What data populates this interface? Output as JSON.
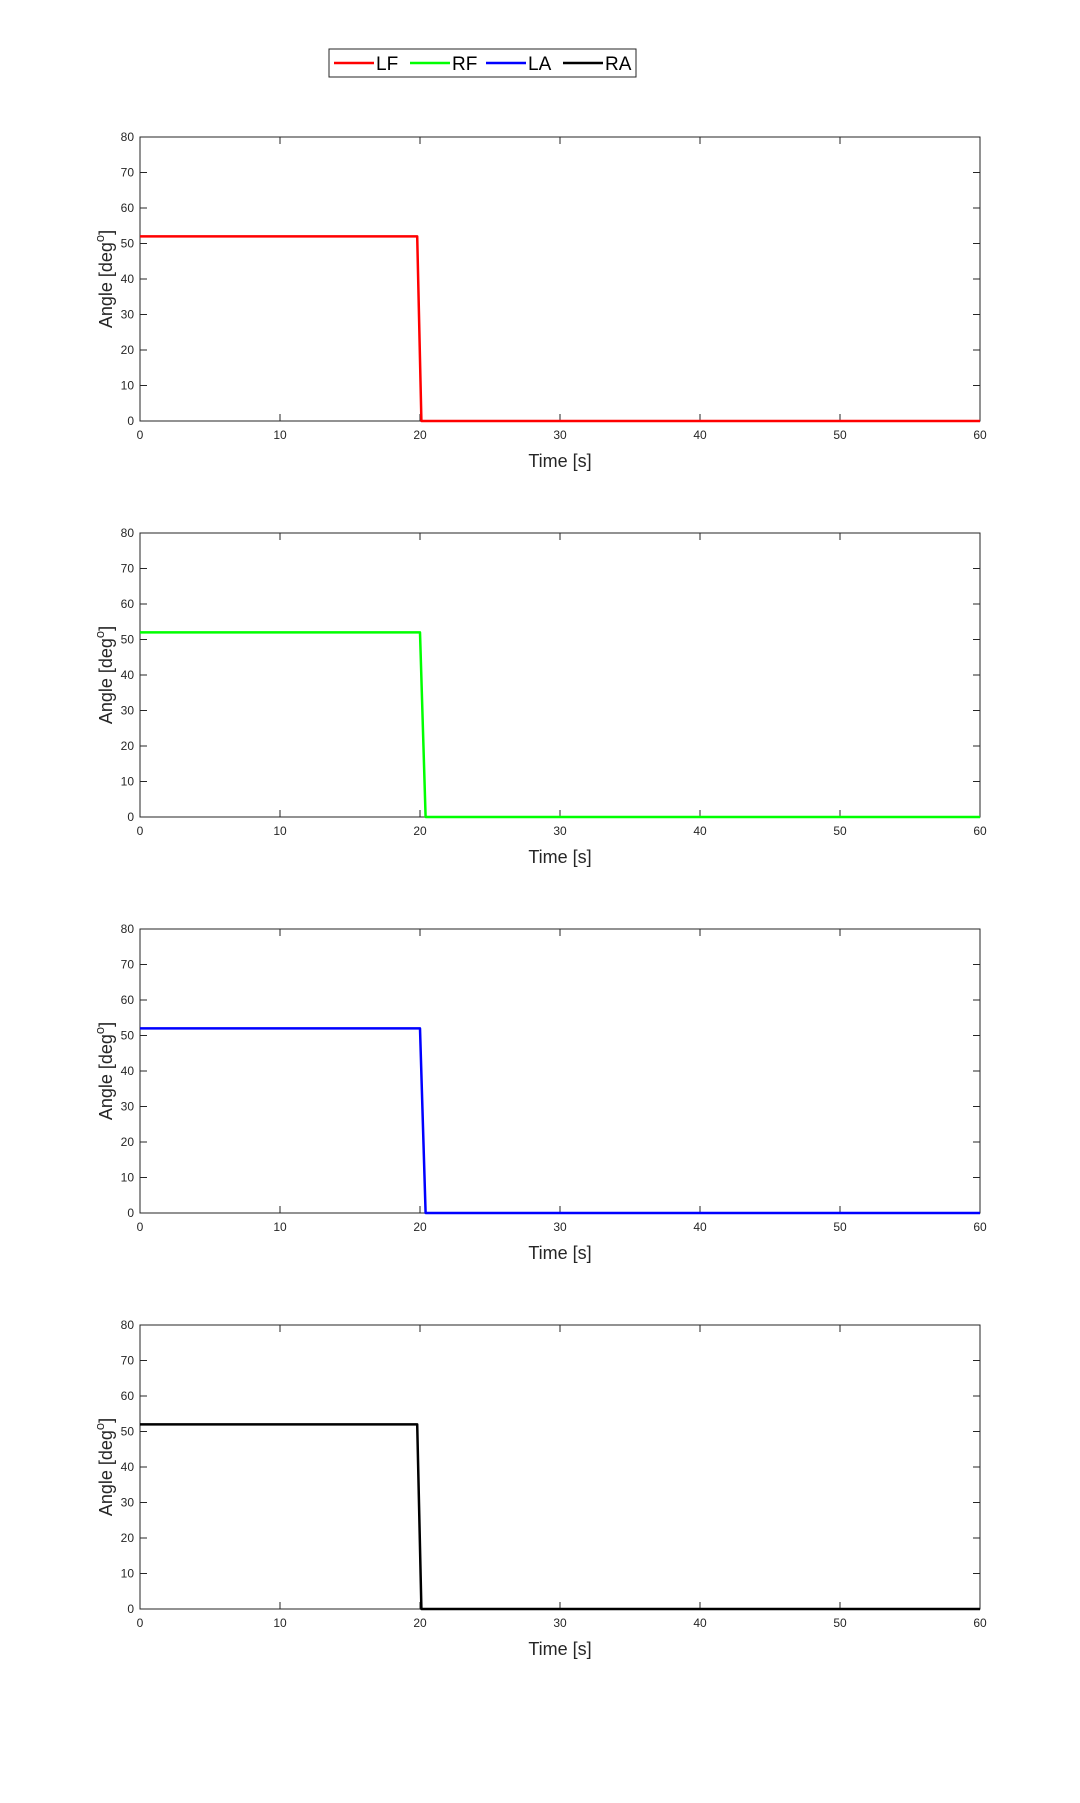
{
  "legend": {
    "placement": "top-center",
    "entries": [
      {
        "label": "LF",
        "color": "#ff0000"
      },
      {
        "label": "RF",
        "color": "#00ff00"
      },
      {
        "label": "LA",
        "color": "#0000ff"
      },
      {
        "label": "RA",
        "color": "#000000"
      }
    ]
  },
  "chart_data": [
    {
      "type": "line",
      "xlabel": "Time [s]",
      "ylabel": "Angle [deg",
      "ylabel_sup": "o",
      "ylabel_close": "]",
      "xlim": [
        0,
        60
      ],
      "ylim": [
        0,
        80
      ],
      "xticks": [
        0,
        10,
        20,
        30,
        40,
        50,
        60
      ],
      "yticks": [
        0,
        10,
        20,
        30,
        40,
        50,
        60,
        70,
        80
      ],
      "grid": false,
      "series": [
        {
          "name": "LF",
          "color": "#ff0000",
          "x": [
            0,
            19.8,
            20.1,
            60
          ],
          "y": [
            52,
            52,
            0,
            0
          ]
        }
      ]
    },
    {
      "type": "line",
      "xlabel": "Time [s]",
      "ylabel": "Angle [deg",
      "ylabel_sup": "o",
      "ylabel_close": "]",
      "xlim": [
        0,
        60
      ],
      "ylim": [
        0,
        80
      ],
      "xticks": [
        0,
        10,
        20,
        30,
        40,
        50,
        60
      ],
      "yticks": [
        0,
        10,
        20,
        30,
        40,
        50,
        60,
        70,
        80
      ],
      "grid": false,
      "series": [
        {
          "name": "RF",
          "color": "#00ff00",
          "x": [
            0,
            20.0,
            20.4,
            60
          ],
          "y": [
            52,
            52,
            0,
            0
          ]
        }
      ]
    },
    {
      "type": "line",
      "xlabel": "Time [s]",
      "ylabel": "Angle [deg",
      "ylabel_sup": "o",
      "ylabel_close": "]",
      "xlim": [
        0,
        60
      ],
      "ylim": [
        0,
        80
      ],
      "xticks": [
        0,
        10,
        20,
        30,
        40,
        50,
        60
      ],
      "yticks": [
        0,
        10,
        20,
        30,
        40,
        50,
        60,
        70,
        80
      ],
      "grid": false,
      "series": [
        {
          "name": "LA",
          "color": "#0000ff",
          "x": [
            0,
            20.0,
            20.4,
            60
          ],
          "y": [
            52,
            52,
            0,
            0
          ]
        }
      ]
    },
    {
      "type": "line",
      "xlabel": "Time [s]",
      "ylabel": "Angle [deg",
      "ylabel_sup": "o",
      "ylabel_close": "]",
      "xlim": [
        0,
        60
      ],
      "ylim": [
        0,
        80
      ],
      "xticks": [
        0,
        10,
        20,
        30,
        40,
        50,
        60
      ],
      "yticks": [
        0,
        10,
        20,
        30,
        40,
        50,
        60,
        70,
        80
      ],
      "grid": false,
      "series": [
        {
          "name": "RA",
          "color": "#000000",
          "x": [
            0,
            19.8,
            20.1,
            60
          ],
          "y": [
            52,
            52,
            0,
            0
          ]
        }
      ]
    }
  ]
}
